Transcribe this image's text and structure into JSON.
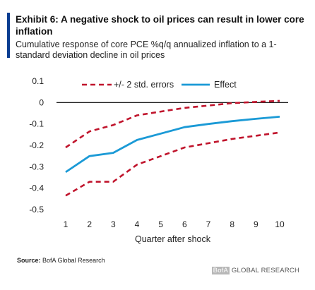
{
  "exhibit": {
    "title": "Exhibit 6: A negative shock to oil prices can result in lower core inflation",
    "subtitle": "Cumulative response of core PCE %q/q annualized inflation to a 1-standard deviation decline in oil prices"
  },
  "source": {
    "label": "Source:",
    "text": "BofA Global Research"
  },
  "brand": {
    "logo": "BofA",
    "text": "GLOBAL RESEARCH"
  },
  "colors": {
    "effect": "#1b9ad6",
    "error_bands": "#c0142c",
    "zero_line": "#000000",
    "accent": "#0b3d91"
  },
  "chart_data": {
    "type": "line",
    "title": "",
    "xlabel": "Quarter after shock",
    "ylabel": "",
    "x": [
      1,
      2,
      3,
      4,
      5,
      6,
      7,
      8,
      9,
      10
    ],
    "xticks": [
      "1",
      "2",
      "3",
      "4",
      "5",
      "6",
      "7",
      "8",
      "9",
      "10"
    ],
    "ylim": [
      -0.5,
      0.1
    ],
    "yticks": [
      "0.1",
      "0",
      "-0.1",
      "-0.2",
      "-0.3",
      "-0.4",
      "-0.5"
    ],
    "grid": false,
    "legend_position": "top",
    "legend": [
      "+/- 2 std. errors",
      "Effect"
    ],
    "series": [
      {
        "name": "+/- 2 std. errors",
        "role": "upper",
        "style": "dashed",
        "values": [
          -0.21,
          -0.135,
          -0.105,
          -0.06,
          -0.042,
          -0.025,
          -0.014,
          -0.003,
          0.003,
          0.008
        ]
      },
      {
        "name": "+/- 2 std. errors",
        "role": "lower",
        "style": "dashed",
        "values": [
          -0.435,
          -0.37,
          -0.37,
          -0.29,
          -0.25,
          -0.21,
          -0.19,
          -0.17,
          -0.155,
          -0.14
        ]
      },
      {
        "name": "Effect",
        "role": "effect",
        "style": "solid",
        "values": [
          -0.325,
          -0.25,
          -0.235,
          -0.175,
          -0.145,
          -0.115,
          -0.1,
          -0.087,
          -0.076,
          -0.066
        ]
      }
    ]
  }
}
